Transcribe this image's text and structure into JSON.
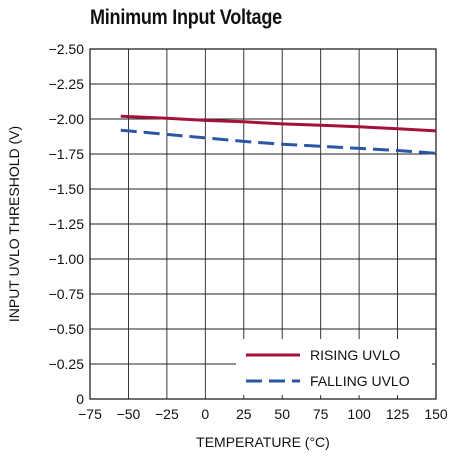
{
  "chart_data": {
    "type": "line",
    "title": "Minimum Input Voltage",
    "xlabel": "TEMPERATURE (°C)",
    "ylabel": "INPUT UVLO THRESHOLD (V)",
    "xlim": [
      -75,
      150
    ],
    "ylim": [
      0,
      -2.5
    ],
    "x_ticks": [
      "−75",
      "−50",
      "−25",
      "0",
      "25",
      "50",
      "75",
      "100",
      "125",
      "150"
    ],
    "y_ticks": [
      "−2.50",
      "−2.25",
      "−2.00",
      "−1.75",
      "−1.50",
      "−1.25",
      "−1.00",
      "−0.75",
      "−0.50",
      "−0.25",
      "0"
    ],
    "grid": true,
    "legend_position": "bottom-right",
    "series": [
      {
        "name": "RISING UVLO",
        "color": "#a3123a",
        "style": "solid",
        "x": [
          -55,
          -25,
          0,
          25,
          50,
          75,
          100,
          125,
          150
        ],
        "y": [
          -2.02,
          -2.005,
          -1.99,
          -1.98,
          -1.965,
          -1.955,
          -1.945,
          -1.93,
          -1.915
        ]
      },
      {
        "name": "FALLING UVLO",
        "color": "#2b55a5",
        "style": "dashed",
        "x": [
          -55,
          -25,
          0,
          25,
          50,
          75,
          100,
          125,
          150
        ],
        "y": [
          -1.92,
          -1.89,
          -1.865,
          -1.84,
          -1.82,
          -1.805,
          -1.79,
          -1.775,
          -1.755
        ]
      }
    ]
  }
}
